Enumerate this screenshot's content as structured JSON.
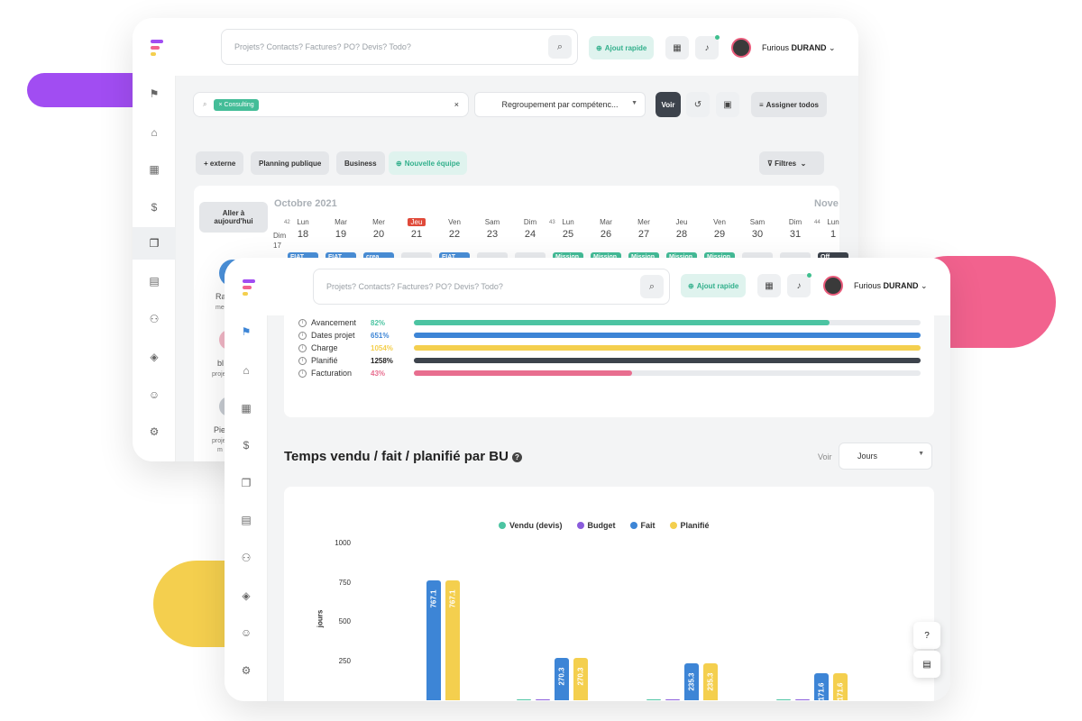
{
  "search": {
    "placeholder": "Projets? Contacts? Factures? PO? Devis? Todo?"
  },
  "quick_add": "Ajout rapide",
  "user": {
    "first": "Furious",
    "last": "DURAND"
  },
  "back": {
    "filter_tag": "Consulting",
    "grouping": "Regroupement par compétenc...",
    "voir": "Voir",
    "assign": "Assigner todos",
    "chips": [
      "+ externe",
      "Planning publique",
      "Business",
      "Nouvelle équipe"
    ],
    "filters": "Filtres",
    "goto_today": "Aller à aujourd'hui",
    "month": "Octobre 2021",
    "next_month": "Nove",
    "week42": "42",
    "week43": "43",
    "week44": "44",
    "dim17": "Dim 17",
    "days": [
      {
        "d": "Lun",
        "n": "18"
      },
      {
        "d": "Mar",
        "n": "19"
      },
      {
        "d": "Mer",
        "n": "20"
      },
      {
        "d": "Jeu",
        "n": "21"
      },
      {
        "d": "Ven",
        "n": "22"
      },
      {
        "d": "Sam",
        "n": "23"
      },
      {
        "d": "Dim",
        "n": "24"
      },
      {
        "d": "Lun",
        "n": "25"
      },
      {
        "d": "Mar",
        "n": "26"
      },
      {
        "d": "Mer",
        "n": "27"
      },
      {
        "d": "Jeu",
        "n": "28"
      },
      {
        "d": "Ven",
        "n": "29"
      },
      {
        "d": "Sam",
        "n": "30"
      },
      {
        "d": "Dim",
        "n": "31"
      },
      {
        "d": "Lun",
        "n": "1"
      }
    ],
    "cells": [
      "FIAT FIAT",
      "FIAT FIAT",
      "crea FIAT",
      "",
      "FIAT FIAT",
      "",
      "",
      "Mission Mission re 4h",
      "Mission Mission re 4h",
      "Mission Mission re 4h",
      "Mission Mission re 4h",
      "Mission Mission re 4h",
      "",
      "",
      "Off"
    ],
    "people": [
      "Ra",
      "me",
      "bl",
      "proje",
      "Pie",
      "proje",
      "m"
    ]
  },
  "progress": [
    {
      "label": "Avancement",
      "pct": "82%",
      "value": 82,
      "color": "#4cc4a2"
    },
    {
      "label": "Dates projet",
      "pct": "651%",
      "value": 100,
      "color": "#3d85d6"
    },
    {
      "label": "Charge",
      "pct": "1054%",
      "value": 100,
      "color": "#f4cf4e"
    },
    {
      "label": "Planifié",
      "pct": "1258%",
      "value": 100,
      "color": "#3d434c"
    },
    {
      "label": "Facturation",
      "pct": "43%",
      "value": 43,
      "color": "#e86e8f"
    }
  ],
  "section": {
    "title": "Temps vendu / fait / planifié par BU",
    "voir": "Voir",
    "unit": "Jours"
  },
  "chart_data": {
    "type": "bar",
    "ylabel": "jours",
    "ylim": [
      0,
      1000
    ],
    "yticks": [
      "1000",
      "750",
      "500",
      "250"
    ],
    "legend": [
      {
        "name": "Vendu (devis)",
        "color": "#4cc4a2"
      },
      {
        "name": "Budget",
        "color": "#8a5cdc"
      },
      {
        "name": "Fait",
        "color": "#3d85d6"
      },
      {
        "name": "Planifié",
        "color": "#f4cf4e"
      }
    ],
    "groups": [
      {
        "values": [
          null,
          null,
          767.1,
          767.1
        ]
      },
      {
        "values": [
          4,
          4,
          270.3,
          270.3
        ]
      },
      {
        "values": [
          4,
          4,
          235.3,
          235.3
        ]
      },
      {
        "values": [
          4,
          4,
          171.6,
          171.6
        ]
      }
    ],
    "labels": [
      [
        null,
        null,
        "767.1",
        "767.1"
      ],
      [
        "",
        "",
        "270.3",
        "270.3"
      ],
      [
        "",
        "",
        "235.3",
        "235.3"
      ],
      [
        "",
        "",
        "171.6",
        "171.6"
      ]
    ]
  },
  "float": {
    "help": "?",
    "chat": "▤"
  }
}
